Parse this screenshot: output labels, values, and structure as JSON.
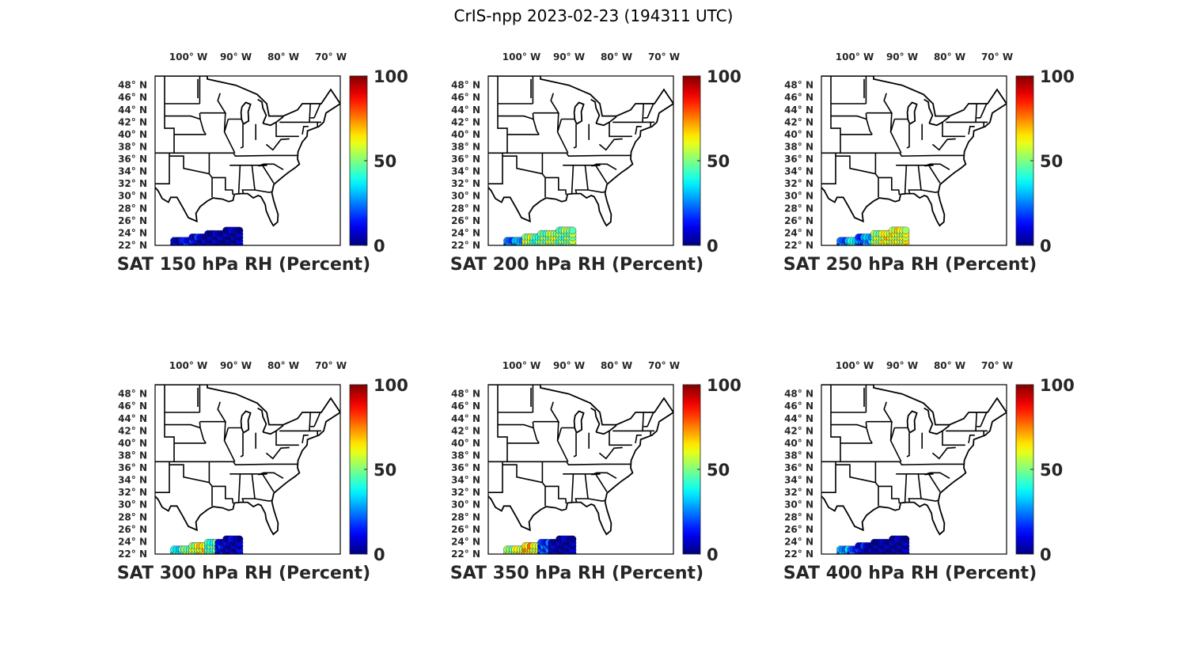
{
  "figure": {
    "title": "CrIS-npp 2023-02-23 (194311 UTC)"
  },
  "shared": {
    "lon_ticks": [
      "100° W",
      "90° W",
      "80° W",
      "70° W"
    ],
    "lat_ticks": [
      "48° N",
      "46° N",
      "44° N",
      "42° N",
      "40° N",
      "38° N",
      "36° N",
      "34° N",
      "32° N",
      "30° N",
      "28° N",
      "26° N",
      "24° N",
      "22° N"
    ],
    "colorbar": {
      "ticks": [
        "100",
        "50",
        "0"
      ],
      "range": [
        0,
        100
      ],
      "colormap": "jet"
    },
    "map_extent": {
      "lon": [
        -106,
        -67
      ],
      "lat": [
        22,
        49.5
      ]
    }
  },
  "chart_data": [
    {
      "type": "scatter",
      "panel": 1,
      "title": "SAT 150 hPa RH (Percent)",
      "clim": [
        0,
        100
      ],
      "profile": [
        8,
        14,
        10,
        6,
        4,
        3,
        3,
        3
      ]
    },
    {
      "type": "scatter",
      "panel": 2,
      "title": "SAT 200 hPa RH (Percent)",
      "clim": [
        0,
        100
      ],
      "profile": [
        25,
        30,
        55,
        45,
        50,
        55,
        48,
        50
      ]
    },
    {
      "type": "scatter",
      "panel": 3,
      "title": "SAT 250 hPa RH (Percent)",
      "clim": [
        0,
        100
      ],
      "profile": [
        25,
        40,
        20,
        30,
        55,
        62,
        60,
        58
      ]
    },
    {
      "type": "scatter",
      "panel": 4,
      "title": "SAT 300 hPa RH (Percent)",
      "clim": [
        0,
        100
      ],
      "profile": [
        40,
        50,
        55,
        65,
        45,
        10,
        5,
        5
      ]
    },
    {
      "type": "scatter",
      "panel": 5,
      "title": "SAT 350 hPa RH (Percent)",
      "clim": [
        0,
        100
      ],
      "profile": [
        55,
        60,
        68,
        60,
        20,
        5,
        3,
        3
      ]
    },
    {
      "type": "scatter",
      "panel": 6,
      "title": "SAT 400 hPa RH (Percent)",
      "clim": [
        0,
        100
      ],
      "profile": [
        30,
        20,
        10,
        5,
        3,
        3,
        3,
        3
      ]
    }
  ]
}
